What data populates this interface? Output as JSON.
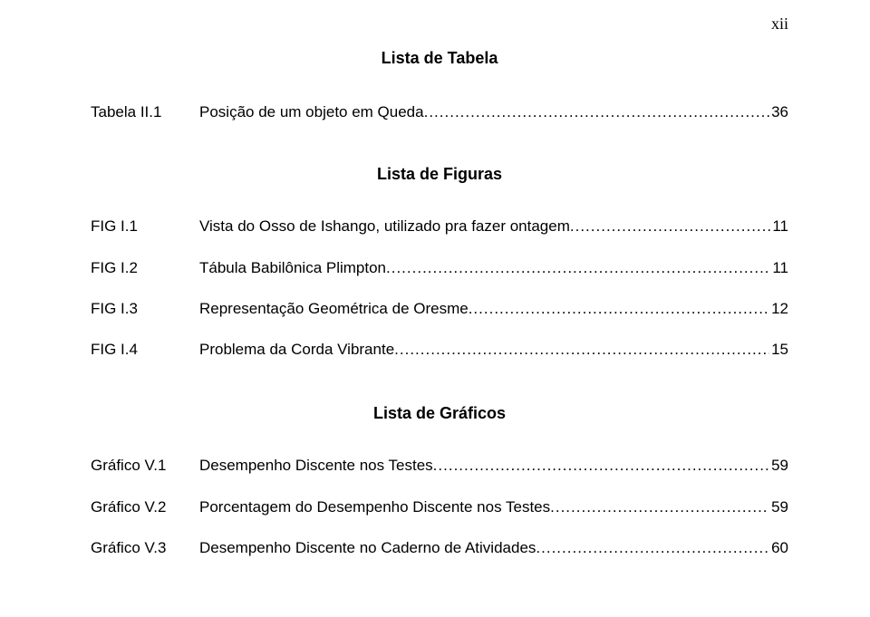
{
  "page_number": "xii",
  "sections": {
    "tabela": {
      "title": "Lista de Tabela",
      "entries": [
        {
          "label": "Tabela II.1",
          "title": "Posição de um objeto em Queda",
          "page": "36"
        }
      ]
    },
    "figuras": {
      "title": "Lista de Figuras",
      "entries": [
        {
          "label": "FIG I.1",
          "title": "Vista do Osso de Ishango, utilizado pra fazer ontagem",
          "page": "11"
        },
        {
          "label": "FIG I.2",
          "title": "Tábula Babilônica Plimpton",
          "page": " 11"
        },
        {
          "label": "FIG I.3",
          "title": "Representação Geométrica de Oresme",
          "page": " 12"
        },
        {
          "label": "FIG I.4",
          "title": "Problema da Corda Vibrante",
          "page": "15"
        }
      ]
    },
    "graficos": {
      "title": "Lista de Gráficos",
      "entries": [
        {
          "label": "Gráfico V.1",
          "title": "Desempenho Discente nos Testes",
          "page": "59"
        },
        {
          "label": "Gráfico V.2",
          "title": "Porcentagem do Desempenho Discente nos Testes",
          "page": "59"
        },
        {
          "label": "Gráfico V.3",
          "title": "Desempenho Discente no Caderno de Atividades",
          "page": "60"
        }
      ]
    }
  }
}
